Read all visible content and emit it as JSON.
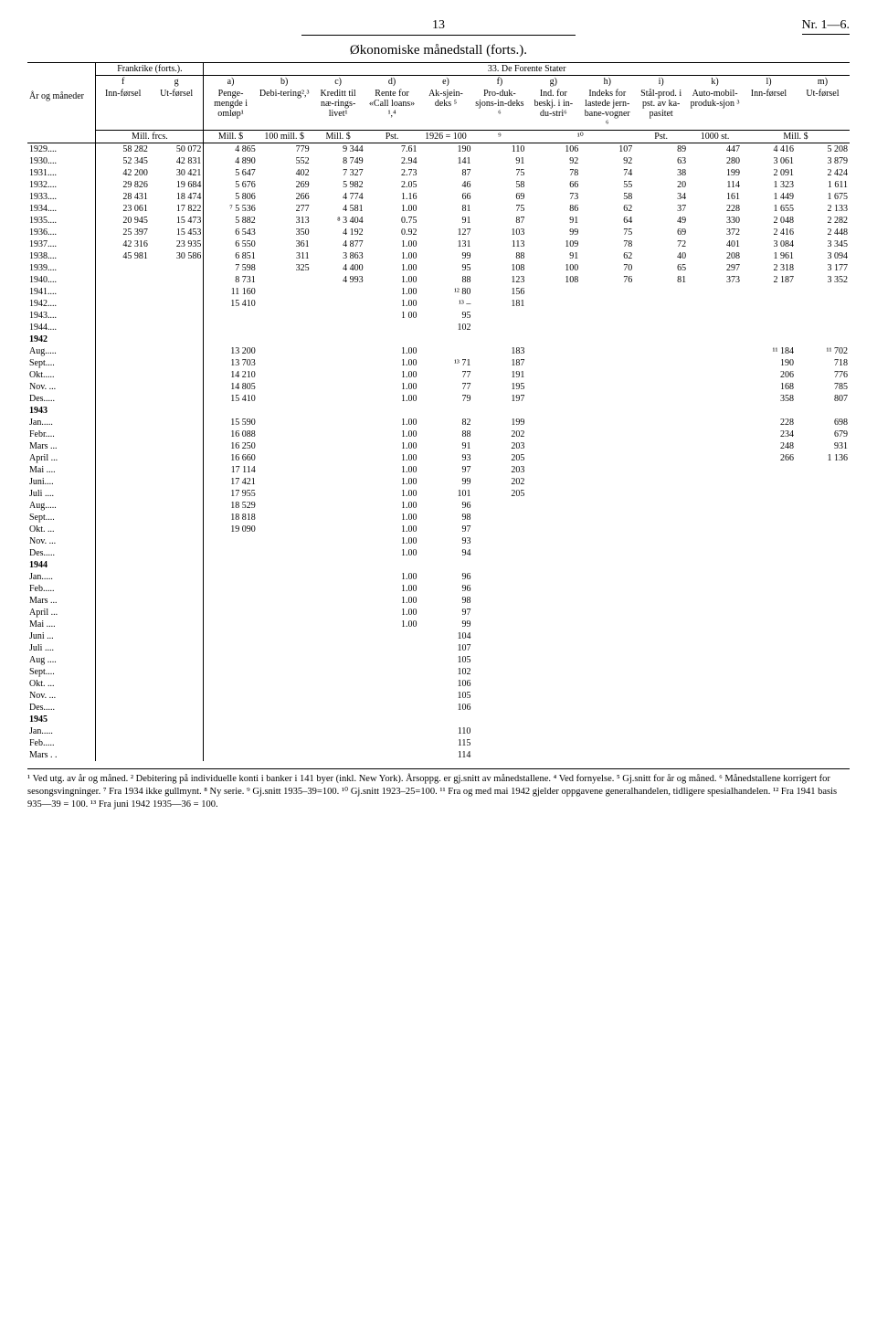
{
  "page": {
    "num": "13",
    "ref": "Nr. 1—6."
  },
  "title": "Økonomiske månedstall (forts.).",
  "frankrike": "Frankrike (forts.).",
  "de_forente": "33.  De Forente Stater",
  "rowhead": "År og måneder",
  "cols": {
    "f": "f",
    "g": "g",
    "inn": "Inn-førsel",
    "ut": "Ut-førsel",
    "a": "a)",
    "b": "b)",
    "c": "c)",
    "d": "d)",
    "e": "e)",
    "ff": "f)",
    "gg": "g)",
    "h": "h)",
    "i": "i)",
    "k": "k)",
    "l": "l)",
    "m": "m)",
    "a_txt": "Penge-mengde i omløp¹",
    "b_txt": "Debi-tering²,³",
    "c_txt": "Kreditt til næ-rings-livet¹",
    "d_txt": "Rente for «Call loans» ¹,⁴",
    "e_txt": "Ak-sjein-deks ⁵",
    "f_txt": "Pro-duk-sjons-in-deks ⁶",
    "g_txt": "Ind. for beskj. i in-du-stri⁶",
    "h_txt": "Indeks for lastede jern-bane-vogner ⁶",
    "i_txt": "Stål-prod. i pst. av ka-pasitet",
    "k_txt": "Auto-mobil-produk-sjon ³",
    "l_txt": "Inn-førsel",
    "m_txt": "Ut-førsel"
  },
  "units": {
    "fr": "Mill. frcs.",
    "a": "Mill. $",
    "b": "100 mill. $",
    "c": "Mill. $",
    "d": "Pst.",
    "e": "1926 = 100",
    "f": "⁹",
    "gh": "¹⁰",
    "i": "Pst.",
    "k": "1000 st.",
    "lm": "Mill. $"
  },
  "rows": [
    {
      "y": "1929....",
      "f": "58 282",
      "g": "50 072",
      "a": "4 865",
      "b": "779",
      "c": "9 344",
      "d": "7.61",
      "e": "190",
      "ff": "110",
      "gg": "106",
      "h": "107",
      "i": "89",
      "k": "447",
      "l": "4 416",
      "m": "5 208"
    },
    {
      "y": "1930....",
      "f": "52 345",
      "g": "42 831",
      "a": "4 890",
      "b": "552",
      "c": "8 749",
      "d": "2.94",
      "e": "141",
      "ff": "91",
      "gg": "92",
      "h": "92",
      "i": "63",
      "k": "280",
      "l": "3 061",
      "m": "3 879"
    },
    {
      "y": "1931....",
      "f": "42 200",
      "g": "30 421",
      "a": "5 647",
      "b": "402",
      "c": "7 327",
      "d": "2.73",
      "e": "87",
      "ff": "75",
      "gg": "78",
      "h": "74",
      "i": "38",
      "k": "199",
      "l": "2 091",
      "m": "2 424"
    },
    {
      "y": "1932....",
      "f": "29 826",
      "g": "19 684",
      "a": "5 676",
      "b": "269",
      "c": "5 982",
      "d": "2.05",
      "e": "46",
      "ff": "58",
      "gg": "66",
      "h": "55",
      "i": "20",
      "k": "114",
      "l": "1 323",
      "m": "1 611"
    },
    {
      "y": "1933....",
      "f": "28 431",
      "g": "18 474",
      "a": "5 806",
      "b": "266",
      "c": "4 774",
      "d": "1.16",
      "e": "66",
      "ff": "69",
      "gg": "73",
      "h": "58",
      "i": "34",
      "k": "161",
      "l": "1 449",
      "m": "1 675"
    },
    {
      "y": "1934....",
      "f": "23 061",
      "g": "17 822",
      "a": "⁷ 5 536",
      "b": "277",
      "c": "4 581",
      "d": "1.00",
      "e": "81",
      "ff": "75",
      "gg": "86",
      "h": "62",
      "i": "37",
      "k": "228",
      "l": "1 655",
      "m": "2 133"
    },
    {
      "y": "1935....",
      "f": "20 945",
      "g": "15 473",
      "a": "5 882",
      "b": "313",
      "c": "⁸ 3 404",
      "d": "0.75",
      "e": "91",
      "ff": "87",
      "gg": "91",
      "h": "64",
      "i": "49",
      "k": "330",
      "l": "2 048",
      "m": "2 282"
    },
    {
      "y": "1936....",
      "f": "25 397",
      "g": "15 453",
      "a": "6 543",
      "b": "350",
      "c": "4 192",
      "d": "0.92",
      "e": "127",
      "ff": "103",
      "gg": "99",
      "h": "75",
      "i": "69",
      "k": "372",
      "l": "2 416",
      "m": "2 448"
    },
    {
      "y": "1937....",
      "f": "42 316",
      "g": "23 935",
      "a": "6 550",
      "b": "361",
      "c": "4 877",
      "d": "1.00",
      "e": "131",
      "ff": "113",
      "gg": "109",
      "h": "78",
      "i": "72",
      "k": "401",
      "l": "3 084",
      "m": "3 345"
    },
    {
      "y": "1938....",
      "f": "45 981",
      "g": "30 586",
      "a": "6 851",
      "b": "311",
      "c": "3 863",
      "d": "1.00",
      "e": "99",
      "ff": "88",
      "gg": "91",
      "h": "62",
      "i": "40",
      "k": "208",
      "l": "1 961",
      "m": "3 094"
    },
    {
      "y": "1939....",
      "f": "",
      "g": "",
      "a": "7 598",
      "b": "325",
      "c": "4 400",
      "d": "1.00",
      "e": "95",
      "ff": "108",
      "gg": "100",
      "h": "70",
      "i": "65",
      "k": "297",
      "l": "2 318",
      "m": "3 177"
    },
    {
      "y": "1940....",
      "f": "",
      "g": "",
      "a": "8 731",
      "b": "",
      "c": "4 993",
      "d": "1.00",
      "e": "88",
      "ff": "123",
      "gg": "108",
      "h": "76",
      "i": "81",
      "k": "373",
      "l": "2 187",
      "m": "3 352"
    },
    {
      "y": "1941....",
      "f": "",
      "g": "",
      "a": "11 160",
      "b": "",
      "c": "",
      "d": "1.00",
      "e": "¹² 80",
      "ff": "156",
      "gg": "",
      "h": "",
      "i": "",
      "k": "",
      "l": "",
      "m": ""
    },
    {
      "y": "1942....",
      "f": "",
      "g": "",
      "a": "15 410",
      "b": "",
      "c": "",
      "d": "1.00",
      "e": "¹³  –",
      "ff": "181",
      "gg": "",
      "h": "",
      "i": "",
      "k": "",
      "l": "",
      "m": ""
    },
    {
      "y": "1943....",
      "f": "",
      "g": "",
      "a": "",
      "b": "",
      "c": "",
      "d": "1 00",
      "e": "95",
      "ff": "",
      "gg": "",
      "h": "",
      "i": "",
      "k": "",
      "l": "",
      "m": ""
    },
    {
      "y": "1944....",
      "f": "",
      "g": "",
      "a": "",
      "b": "",
      "c": "",
      "d": "",
      "e": "102",
      "ff": "",
      "gg": "",
      "h": "",
      "i": "",
      "k": "",
      "l": "",
      "m": ""
    }
  ],
  "block1942": "1942",
  "m1942": [
    {
      "y": "Aug.....",
      "a": "13 200",
      "d": "1.00",
      "e": "",
      "ff": "183",
      "l": "¹¹ 184",
      "m": "¹¹ 702"
    },
    {
      "y": "Sept....",
      "a": "13 703",
      "d": "1.00",
      "e": "¹³ 71",
      "ff": "187",
      "l": "190",
      "m": "718"
    },
    {
      "y": "Okt.....",
      "a": "14 210",
      "d": "1.00",
      "e": "77",
      "ff": "191",
      "l": "206",
      "m": "776"
    },
    {
      "y": "Nov. ...",
      "a": "14 805",
      "d": "1.00",
      "e": "77",
      "ff": "195",
      "l": "168",
      "m": "785"
    },
    {
      "y": "Des.....",
      "a": "15 410",
      "d": "1.00",
      "e": "79",
      "ff": "197",
      "l": "358",
      "m": "807"
    }
  ],
  "block1943": "1943",
  "m1943": [
    {
      "y": "Jan.....",
      "a": "15 590",
      "d": "1.00",
      "e": "82",
      "ff": "199",
      "l": "228",
      "m": "698"
    },
    {
      "y": "Febr....",
      "a": "16 088",
      "d": "1.00",
      "e": "88",
      "ff": "202",
      "l": "234",
      "m": "679"
    },
    {
      "y": "Mars ...",
      "a": "16 250",
      "d": "1.00",
      "e": "91",
      "ff": "203",
      "l": "248",
      "m": "931"
    },
    {
      "y": "April ...",
      "a": "16 660",
      "d": "1.00",
      "e": "93",
      "ff": "205",
      "l": "266",
      "m": "1 136"
    },
    {
      "y": "Mai ....",
      "a": "17 114",
      "d": "1.00",
      "e": "97",
      "ff": "203",
      "l": "",
      "m": ""
    },
    {
      "y": "Juni....",
      "a": "17 421",
      "d": "1.00",
      "e": "99",
      "ff": "202",
      "l": "",
      "m": ""
    },
    {
      "y": "Juli ....",
      "a": "17 955",
      "d": "1.00",
      "e": "101",
      "ff": "205",
      "l": "",
      "m": ""
    },
    {
      "y": "Aug.....",
      "a": "18 529",
      "d": "1.00",
      "e": "96",
      "ff": "",
      "l": "",
      "m": ""
    },
    {
      "y": "Sept....",
      "a": "18 818",
      "d": "1.00",
      "e": "98",
      "ff": "",
      "l": "",
      "m": ""
    },
    {
      "y": "Okt. ...",
      "a": "19 090",
      "d": "1.00",
      "e": "97",
      "ff": "",
      "l": "",
      "m": ""
    },
    {
      "y": "Nov. ...",
      "a": "",
      "d": "1.00",
      "e": "93",
      "ff": "",
      "l": "",
      "m": ""
    },
    {
      "y": "Des.....",
      "a": "",
      "d": "1.00",
      "e": "94",
      "ff": "",
      "l": "",
      "m": ""
    }
  ],
  "block1944": "1944",
  "m1944": [
    {
      "y": "Jan.....",
      "d": "1.00",
      "e": "96"
    },
    {
      "y": "Feb.....",
      "d": "1.00",
      "e": "96"
    },
    {
      "y": "Mars ...",
      "d": "1.00",
      "e": "98"
    },
    {
      "y": "April ...",
      "d": "1.00",
      "e": "97"
    },
    {
      "y": "Mai ....",
      "d": "1.00",
      "e": "99"
    },
    {
      "y": "Juni ...",
      "d": "",
      "e": "104"
    },
    {
      "y": "Juli ....",
      "d": "",
      "e": "107"
    },
    {
      "y": "Aug ....",
      "d": "",
      "e": "105"
    },
    {
      "y": "Sept....",
      "d": "",
      "e": "102"
    },
    {
      "y": "Okt. ...",
      "d": "",
      "e": "106"
    },
    {
      "y": "Nov. ...",
      "d": "",
      "e": "105"
    },
    {
      "y": "Des.....",
      "d": "",
      "e": "106"
    }
  ],
  "block1945": "1945",
  "m1945": [
    {
      "y": "Jan.....",
      "e": "110"
    },
    {
      "y": "Feb.....",
      "e": "115"
    },
    {
      "y": "Mars . .",
      "e": "114"
    }
  ],
  "footnotes": "¹ Ved utg. av år og måned.  ² Debitering på individuelle konti i banker i 141 byer (inkl. New York). Årsoppg. er gj.snitt av månedstallene.  ⁴ Ved fornyelse.  ⁵ Gj.snitt for år og måned.  ⁶ Månedstallene korrigert for sesongsvingninger. ⁷ Fra 1934 ikke gullmynt.  ⁸ Ny serie.  ⁹ Gj.snitt 1935–39=100.  ¹⁰ Gj.snitt 1923–25=100. ¹¹ Fra og med mai 1942 gjelder oppgavene generalhandelen, tidligere spesialhandelen.  ¹² Fra 1941 basis 935—39 = 100.  ¹³ Fra juni 1942 1935—36 = 100."
}
